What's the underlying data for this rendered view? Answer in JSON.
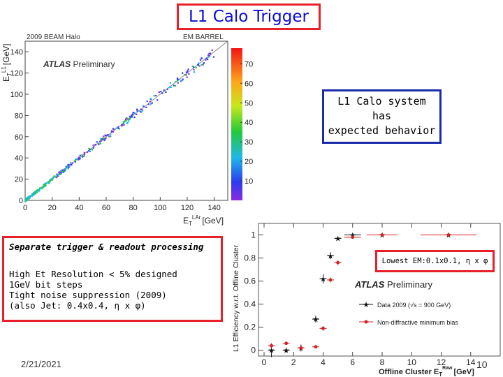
{
  "slide": {
    "title": "L1 Calo Trigger",
    "callout": [
      "L1 Calo system",
      "has",
      "expected behavior"
    ],
    "left_box": {
      "heading": "Separate trigger & readout processing",
      "lines": [
        "High Et Resolution < 5% designed",
        "1GeV bit steps",
        "Tight noise suppression (2009)",
        "(also Jet: 0.4x0.4, η x φ)"
      ]
    },
    "lowest_em": "Lowest EM:0.1x0.1, η x φ",
    "date": "2/21/2021",
    "page_number": "10",
    "colors": {
      "title_border": "#e8202a",
      "title_text": "#0b0bd8",
      "callout_border": "#1a2ba8",
      "data_red": "#d81e1e"
    }
  },
  "chart_data": [
    {
      "type": "heatmap",
      "header_left": "2009 BEAM Halo",
      "header_right": "EM BARREL",
      "watermark_bold": "ATLAS",
      "watermark": "Preliminary",
      "xlabel": "E",
      "xlabel_sub": "T",
      "xlabel_sup": "LAr",
      "xunit": "[GeV]",
      "ylabel": "E",
      "ylabel_sub": "T",
      "ylabel_sup": "L1",
      "yunit": "[GeV]",
      "xlim": [
        0,
        150
      ],
      "ylim": [
        0,
        150
      ],
      "xticks": [
        0,
        20,
        40,
        60,
        80,
        100,
        120,
        140
      ],
      "yticks": [
        0,
        20,
        40,
        60,
        80,
        100,
        120,
        140
      ],
      "zlim": [
        0,
        78
      ],
      "zticks": [
        10,
        20,
        30,
        40,
        50,
        60,
        70
      ],
      "diagonal_fit": true
    },
    {
      "type": "scatter",
      "watermark_bold": "ATLAS",
      "watermark": "Preliminary",
      "ylabel": "L1 Efficiency w.r.t. Offline Cluster",
      "xlabel": "Offline Cluster E",
      "xlabel_sub": "T",
      "xlabel_sup": "Raw",
      "xunit": "[GeV]",
      "xlim": [
        0,
        16
      ],
      "ylim": [
        -0.05,
        1.1
      ],
      "xticks": [
        0,
        2,
        4,
        6,
        8,
        10,
        12,
        14
      ],
      "yticks": [
        0,
        0.2,
        0.4,
        0.6,
        0.8,
        1
      ],
      "series": [
        {
          "name": "Data 2009 (√s = 900 GeV)",
          "color": "#111111",
          "marker": "star",
          "x": [
            0.5,
            1.5,
            2.5,
            3.5,
            4.0,
            4.5,
            5.0,
            6.0,
            8.0,
            12.5
          ],
          "y": [
            0.0,
            0.0,
            0.02,
            0.27,
            0.62,
            0.82,
            0.97,
            1.0,
            1.0,
            1.0
          ],
          "yerr": [
            0.06,
            0.02,
            0.03,
            0.03,
            0.04,
            0.03,
            0.01,
            0.01,
            0.005,
            0.005
          ]
        },
        {
          "name": "Non-diffractive minimum bias",
          "color": "#d81e1e",
          "marker": "dot",
          "x": [
            0.5,
            1.5,
            2.5,
            3.5,
            4.0,
            4.5,
            5.0,
            6.0,
            8.0,
            12.5
          ],
          "y": [
            0.04,
            0.06,
            0.02,
            0.03,
            0.19,
            0.61,
            0.76,
            0.98,
            1.0,
            1.0
          ],
          "yerr": [
            0.02,
            0.01,
            0.01,
            0.01,
            0.02,
            0.02,
            0.02,
            0.01,
            0.005,
            0.005
          ]
        }
      ]
    }
  ]
}
